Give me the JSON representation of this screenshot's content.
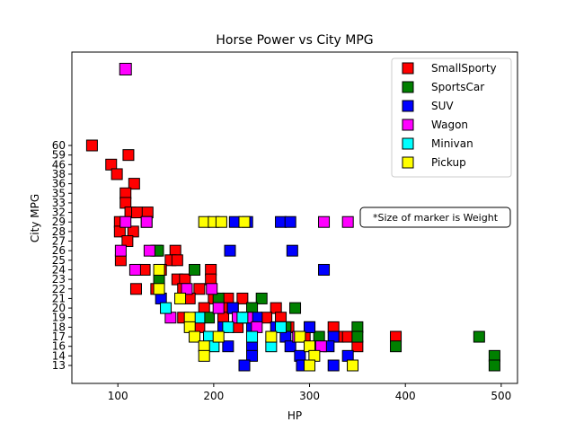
{
  "chart_data": {
    "type": "scatter",
    "title": "Horse Power vs City MPG",
    "xlabel": "HP",
    "ylabel": "City MPG",
    "xlim": [
      52,
      517
    ],
    "x_ticks": [
      100,
      200,
      300,
      400,
      500
    ],
    "y_tick_labels": [
      "13",
      "14",
      "16",
      "17",
      "18",
      "19",
      "20",
      "21",
      "22",
      "23",
      "24",
      "25",
      "26",
      "27",
      "28",
      "29",
      "32",
      "33",
      "35",
      "36",
      "38",
      "46",
      "59",
      "60"
    ],
    "annotation": "*Size of marker is Weight",
    "legend_position": "top-right",
    "series": [
      {
        "name": "SmallSporty",
        "color": "#ff0000",
        "points": [
          {
            "x": 73,
            "y": "60"
          },
          {
            "x": 111,
            "y": "59"
          },
          {
            "x": 93,
            "y": "46"
          },
          {
            "x": 99,
            "y": "38"
          },
          {
            "x": 117,
            "y": "36"
          },
          {
            "x": 108,
            "y": "35"
          },
          {
            "x": 108,
            "y": "33"
          },
          {
            "x": 113,
            "y": "32"
          },
          {
            "x": 120,
            "y": "32"
          },
          {
            "x": 131,
            "y": "32"
          },
          {
            "x": 102,
            "y": "29"
          },
          {
            "x": 130,
            "y": "29"
          },
          {
            "x": 102,
            "y": "28"
          },
          {
            "x": 116,
            "y": "28"
          },
          {
            "x": 110,
            "y": "27"
          },
          {
            "x": 140,
            "y": "26"
          },
          {
            "x": 160,
            "y": "26"
          },
          {
            "x": 103,
            "y": "25"
          },
          {
            "x": 155,
            "y": "25"
          },
          {
            "x": 162,
            "y": "25"
          },
          {
            "x": 120,
            "y": "24"
          },
          {
            "x": 128,
            "y": "24"
          },
          {
            "x": 145,
            "y": "24"
          },
          {
            "x": 197,
            "y": "24"
          },
          {
            "x": 162,
            "y": "23"
          },
          {
            "x": 170,
            "y": "23"
          },
          {
            "x": 197,
            "y": "23"
          },
          {
            "x": 119,
            "y": "22"
          },
          {
            "x": 140,
            "y": "22"
          },
          {
            "x": 168,
            "y": "22"
          },
          {
            "x": 185,
            "y": "22"
          },
          {
            "x": 175,
            "y": "21"
          },
          {
            "x": 200,
            "y": "21"
          },
          {
            "x": 215,
            "y": "21"
          },
          {
            "x": 230,
            "y": "21"
          },
          {
            "x": 190,
            "y": "20"
          },
          {
            "x": 215,
            "y": "20"
          },
          {
            "x": 240,
            "y": "20"
          },
          {
            "x": 265,
            "y": "20"
          },
          {
            "x": 168,
            "y": "19"
          },
          {
            "x": 210,
            "y": "19"
          },
          {
            "x": 255,
            "y": "19"
          },
          {
            "x": 270,
            "y": "19"
          },
          {
            "x": 185,
            "y": "18"
          },
          {
            "x": 225,
            "y": "18"
          },
          {
            "x": 278,
            "y": "18"
          },
          {
            "x": 300,
            "y": "18"
          },
          {
            "x": 325,
            "y": "18"
          },
          {
            "x": 295,
            "y": "17"
          },
          {
            "x": 330,
            "y": "17"
          },
          {
            "x": 340,
            "y": "17"
          },
          {
            "x": 390,
            "y": "17"
          },
          {
            "x": 350,
            "y": "16"
          }
        ]
      },
      {
        "name": "SportsCar",
        "color": "#008000",
        "points": [
          {
            "x": 142,
            "y": "26"
          },
          {
            "x": 180,
            "y": "24"
          },
          {
            "x": 143,
            "y": "23"
          },
          {
            "x": 250,
            "y": "21"
          },
          {
            "x": 205,
            "y": "21"
          },
          {
            "x": 220,
            "y": "20"
          },
          {
            "x": 240,
            "y": "20"
          },
          {
            "x": 285,
            "y": "20"
          },
          {
            "x": 195,
            "y": "19"
          },
          {
            "x": 235,
            "y": "19"
          },
          {
            "x": 275,
            "y": "18"
          },
          {
            "x": 300,
            "y": "18"
          },
          {
            "x": 350,
            "y": "18"
          },
          {
            "x": 310,
            "y": "17"
          },
          {
            "x": 350,
            "y": "17"
          },
          {
            "x": 477,
            "y": "17"
          },
          {
            "x": 390,
            "y": "16"
          },
          {
            "x": 493,
            "y": "14"
          },
          {
            "x": 493,
            "y": "13"
          }
        ]
      },
      {
        "name": "SUV",
        "color": "#0000ff",
        "points": [
          {
            "x": 222,
            "y": "29"
          },
          {
            "x": 235,
            "y": "29"
          },
          {
            "x": 270,
            "y": "29"
          },
          {
            "x": 280,
            "y": "29"
          },
          {
            "x": 217,
            "y": "26"
          },
          {
            "x": 282,
            "y": "26"
          },
          {
            "x": 315,
            "y": "24"
          },
          {
            "x": 145,
            "y": "21"
          },
          {
            "x": 220,
            "y": "20"
          },
          {
            "x": 245,
            "y": "19"
          },
          {
            "x": 210,
            "y": "18"
          },
          {
            "x": 240,
            "y": "18"
          },
          {
            "x": 265,
            "y": "18"
          },
          {
            "x": 300,
            "y": "18"
          },
          {
            "x": 325,
            "y": "17"
          },
          {
            "x": 275,
            "y": "17"
          },
          {
            "x": 215,
            "y": "16"
          },
          {
            "x": 240,
            "y": "16"
          },
          {
            "x": 280,
            "y": "16"
          },
          {
            "x": 320,
            "y": "16"
          },
          {
            "x": 240,
            "y": "14"
          },
          {
            "x": 290,
            "y": "14"
          },
          {
            "x": 340,
            "y": "14"
          },
          {
            "x": 232,
            "y": "13"
          },
          {
            "x": 292,
            "y": "13"
          },
          {
            "x": 325,
            "y": "13"
          }
        ]
      },
      {
        "name": "Wagon",
        "color": "#ff00ff",
        "points": [
          {
            "x": 108,
            "y": "29"
          },
          {
            "x": 130,
            "y": "29"
          },
          {
            "x": 315,
            "y": "29"
          },
          {
            "x": 340,
            "y": "29"
          },
          {
            "x": 103,
            "y": "26"
          },
          {
            "x": 133,
            "y": "26"
          },
          {
            "x": 118,
            "y": "24"
          },
          {
            "x": 172,
            "y": "22"
          },
          {
            "x": 198,
            "y": "22"
          },
          {
            "x": 205,
            "y": "20"
          },
          {
            "x": 155,
            "y": "19"
          },
          {
            "x": 225,
            "y": "19"
          },
          {
            "x": 235,
            "y": "19"
          },
          {
            "x": 245,
            "y": "18"
          },
          {
            "x": 288,
            "y": "17"
          },
          {
            "x": 312,
            "y": "16"
          }
        ]
      },
      {
        "name": "Minivan",
        "color": "#00ffff",
        "points": [
          {
            "x": 150,
            "y": "20"
          },
          {
            "x": 185,
            "y": "19"
          },
          {
            "x": 230,
            "y": "19"
          },
          {
            "x": 215,
            "y": "18"
          },
          {
            "x": 195,
            "y": "17"
          },
          {
            "x": 240,
            "y": "17"
          },
          {
            "x": 200,
            "y": "16"
          },
          {
            "x": 260,
            "y": "16"
          },
          {
            "x": 270,
            "y": "18"
          }
        ]
      },
      {
        "name": "Pickup",
        "color": "#ffff00",
        "points": [
          {
            "x": 190,
            "y": "29"
          },
          {
            "x": 200,
            "y": "29"
          },
          {
            "x": 208,
            "y": "29"
          },
          {
            "x": 232,
            "y": "29"
          },
          {
            "x": 143,
            "y": "24"
          },
          {
            "x": 143,
            "y": "22"
          },
          {
            "x": 165,
            "y": "21"
          },
          {
            "x": 175,
            "y": "19"
          },
          {
            "x": 175,
            "y": "18"
          },
          {
            "x": 180,
            "y": "17"
          },
          {
            "x": 205,
            "y": "17"
          },
          {
            "x": 260,
            "y": "17"
          },
          {
            "x": 290,
            "y": "17"
          },
          {
            "x": 190,
            "y": "16"
          },
          {
            "x": 300,
            "y": "16"
          },
          {
            "x": 190,
            "y": "14"
          },
          {
            "x": 305,
            "y": "14"
          },
          {
            "x": 300,
            "y": "13"
          },
          {
            "x": 345,
            "y": "13"
          }
        ]
      }
    ]
  }
}
